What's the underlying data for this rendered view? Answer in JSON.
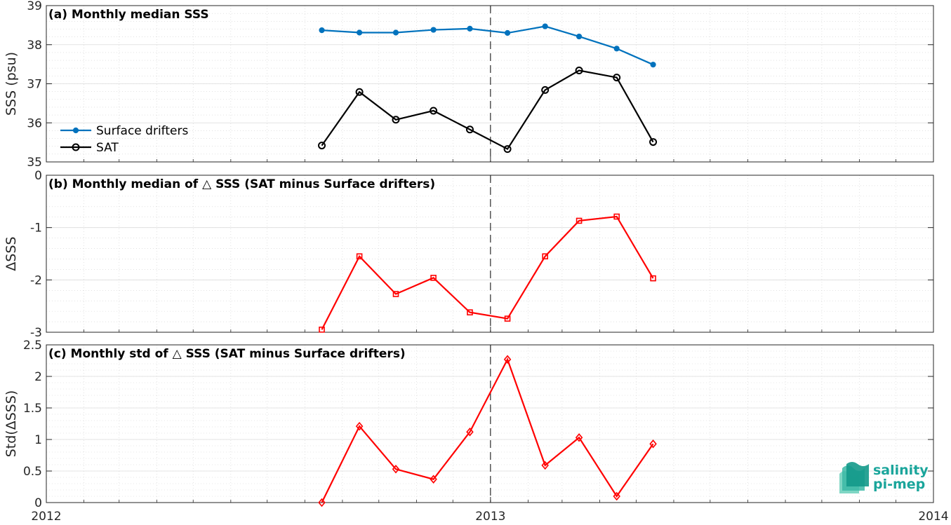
{
  "chart_data": [
    {
      "type": "line",
      "title": "(a) Monthly median SSS",
      "xlabel": "",
      "ylabel": "SSS (psu)",
      "xlim": [
        "2012-01-01",
        "2014-01-01"
      ],
      "ylim": [
        35,
        39
      ],
      "yticks": [
        "35",
        "36",
        "37",
        "38",
        "39"
      ],
      "grid": true,
      "legend": "left",
      "series": [
        {
          "name": "Surface drifters",
          "color": "#0072BD",
          "marker": "dot",
          "x": [
            "2012-08-15",
            "2012-09-15",
            "2012-10-15",
            "2012-11-15",
            "2012-12-15",
            "2013-01-15",
            "2013-02-15",
            "2013-03-15",
            "2013-04-15",
            "2013-05-15",
            "2013-06-15"
          ],
          "values": [
            38.37,
            38.31,
            38.31,
            38.38,
            38.41,
            38.3,
            38.47,
            38.21,
            37.9,
            37.49,
            null
          ]
        },
        {
          "name": "SAT",
          "color": "#000000",
          "marker": "circle",
          "x": [
            "2012-08-15",
            "2012-09-15",
            "2012-10-15",
            "2012-11-15",
            "2012-12-15",
            "2013-01-15",
            "2013-02-15",
            "2013-03-15",
            "2013-04-15",
            "2013-05-15"
          ],
          "values": [
            35.42,
            36.79,
            36.08,
            36.31,
            35.83,
            35.33,
            36.84,
            37.34,
            37.16,
            35.51
          ]
        }
      ]
    },
    {
      "type": "line",
      "title": "(b) Monthly median of △ SSS (SAT minus Surface drifters)",
      "xlabel": "",
      "ylabel": "ΔSSS",
      "xlim": [
        "2012-01-01",
        "2014-01-01"
      ],
      "ylim": [
        -3,
        0
      ],
      "yticks": [
        "-3",
        "-2",
        "-1",
        "0"
      ],
      "grid": true,
      "reference_line": 0,
      "series": [
        {
          "color": "#FF0000",
          "marker": "square",
          "x": [
            "2012-08-15",
            "2012-09-15",
            "2012-10-15",
            "2012-11-15",
            "2012-12-15",
            "2013-01-15",
            "2013-02-15",
            "2013-03-15",
            "2013-04-15",
            "2013-05-15"
          ],
          "values": [
            -2.95,
            -1.55,
            -2.27,
            -1.96,
            -2.62,
            -2.74,
            -1.55,
            -0.87,
            -0.79,
            -1.97
          ]
        }
      ]
    },
    {
      "type": "line",
      "title": "(c) Monthly std of △ SSS (SAT minus Surface drifters)",
      "xlabel": "",
      "ylabel": "Std(ΔSSS)",
      "xlim": [
        "2012-01-01",
        "2014-01-01"
      ],
      "ylim": [
        0,
        2.5
      ],
      "yticks": [
        "0",
        "0.5",
        "1",
        "1.5",
        "2",
        "2.5"
      ],
      "xticks": [
        "2012",
        "2013",
        "2014"
      ],
      "grid": true,
      "series": [
        {
          "color": "#FF0000",
          "marker": "diamond",
          "x": [
            "2012-08-15",
            "2012-09-15",
            "2012-10-15",
            "2012-11-15",
            "2012-12-15",
            "2013-01-15",
            "2013-02-15",
            "2013-03-15",
            "2013-04-15",
            "2013-05-15"
          ],
          "values": [
            0.0,
            1.21,
            0.53,
            0.37,
            1.12,
            2.27,
            0.59,
            1.03,
            0.1,
            0.93
          ]
        }
      ]
    }
  ],
  "vertical_marker_date": "2013-01-01",
  "logo": {
    "line1": "salinity",
    "line2": "pi-mep",
    "color": "#1aa59b"
  }
}
